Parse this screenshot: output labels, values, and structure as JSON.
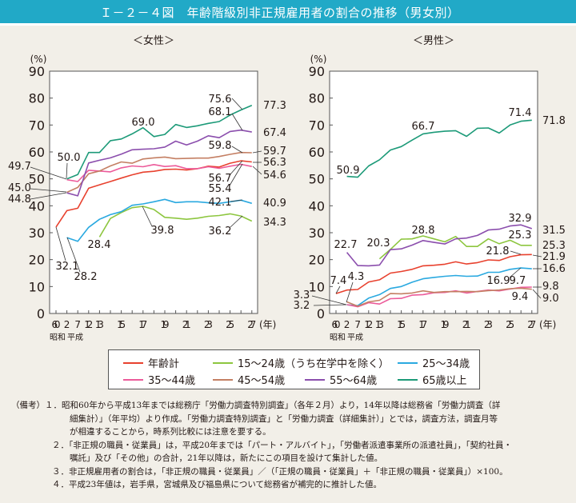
{
  "title": "Ｉ－２－４図　年齢階級別非正規雇用者の割合の推移（男女別）",
  "legend": [
    {
      "label": "年齢計",
      "color": "#e8412e"
    },
    {
      "label": "15～24歳（うち在学中を除く）",
      "color": "#8dc63f"
    },
    {
      "label": "25～34歳",
      "color": "#2aa9e0"
    },
    {
      "label": "35～44歳",
      "color": "#ec5b9a"
    },
    {
      "label": "45～54歳",
      "color": "#c47f63"
    },
    {
      "label": "55～64歳",
      "color": "#8b4ead"
    },
    {
      "label": "65歳以上",
      "color": "#1c9a78"
    }
  ],
  "notes": [
    "（備考）１．昭和60年から平成13年までは総務庁「労働力調査特別調査」（各年２月）より，14年以降は総務省「労働力調査（詳",
    "細集計）」（年平均）より作成。「労働力調査特別調査」と「労働力調査（詳細集計）」とでは，調査方法，調査月等",
    "が相違することから，時系列比較には注意を要する。",
    "２．「非正規の職員・従業員」は，平成20年までは「パート・アルバイト」，「労働者派遣事業所の派遣社員」，「契約社員・",
    "嘱託」及び「その他」の合計，21年以降は，新たにこの項目を設けて集計した値。",
    "３．非正規雇用者の割合は，「非正規の職員・従業員」／（「正規の職員・従業員」＋「非正規の職員・従業員」）×100。",
    "４．平成23年値は，岩手県，宮城県及び福島県について総務省が補完的に推計した値。"
  ],
  "chart_data": [
    {
      "type": "line",
      "title": "＜女性＞",
      "ylabel": "(%)",
      "xlabel": "(年)",
      "era_labels": [
        "昭和",
        "平成"
      ],
      "ylim": [
        0,
        90
      ],
      "yticks": [
        0,
        10,
        20,
        30,
        40,
        50,
        60,
        70,
        80,
        90
      ],
      "categories": [
        "60",
        "2",
        "7",
        "12",
        "13",
        "14",
        "15",
        "16",
        "17",
        "18",
        "19",
        "20",
        "21",
        "22",
        "23",
        "24",
        "25",
        "26",
        "27"
      ],
      "x_tick_labels": [
        "60",
        "2",
        "7",
        "12",
        "13",
        "",
        "15",
        "",
        "17",
        "",
        "19",
        "",
        "21",
        "",
        "23",
        "",
        "25",
        "",
        "27"
      ],
      "series": [
        {
          "name": "年齢計",
          "values": [
            32.1,
            38.2,
            39.1,
            46.5,
            47.8,
            49.0,
            50.3,
            51.5,
            52.5,
            52.8,
            53.5,
            53.6,
            53.3,
            53.8,
            54.7,
            54.4,
            55.8,
            56.7,
            56.3
          ]
        },
        {
          "name": "15～24歳（うち在学中を除く）",
          "values": [
            null,
            null,
            null,
            null,
            28.4,
            35.3,
            37.5,
            39.3,
            39.8,
            38.6,
            35.7,
            35.4,
            35.0,
            35.4,
            36.1,
            36.4,
            37.0,
            36.2,
            34.3
          ]
        },
        {
          "name": "25～34歳",
          "values": [
            null,
            28.2,
            26.8,
            32.0,
            35.0,
            36.7,
            37.8,
            40.2,
            40.7,
            41.5,
            42.4,
            41.2,
            41.5,
            41.5,
            41.1,
            40.9,
            41.5,
            42.1,
            40.9
          ]
        },
        {
          "name": "35～44歳",
          "values": [
            null,
            49.7,
            49.0,
            53.2,
            52.9,
            52.6,
            54.1,
            54.8,
            54.5,
            55.3,
            54.6,
            54.9,
            53.8,
            53.8,
            54.5,
            53.9,
            54.7,
            55.4,
            54.6
          ]
        },
        {
          "name": "45～54歳",
          "values": [
            null,
            45.0,
            46.8,
            51.9,
            52.9,
            54.8,
            56.3,
            55.8,
            57.4,
            57.8,
            58.1,
            57.5,
            57.6,
            57.7,
            57.7,
            58.3,
            59.1,
            59.8,
            59.7
          ]
        },
        {
          "name": "55～64歳",
          "values": [
            null,
            44.8,
            43.7,
            55.9,
            56.9,
            57.8,
            59.2,
            60.8,
            61.0,
            61.2,
            61.8,
            64.0,
            62.6,
            64.0,
            66.0,
            65.3,
            67.6,
            68.1,
            67.4
          ]
        },
        {
          "name": "65歳以上",
          "values": [
            null,
            50.0,
            51.6,
            59.8,
            59.8,
            64.2,
            64.8,
            66.7,
            69.0,
            65.7,
            66.5,
            70.2,
            69.1,
            69.7,
            70.6,
            71.3,
            73.7,
            75.6,
            77.3
          ]
        }
      ],
      "annotations": [
        "69.0",
        "50.0",
        "49.7",
        "45.0",
        "44.8",
        "32.1",
        "28.2",
        "28.4",
        "39.8",
        "36.2",
        "42.1",
        "75.6",
        "68.1",
        "59.8",
        "56.7",
        "55.4",
        "77.3",
        "67.4",
        "59.7",
        "56.3",
        "54.6",
        "40.9",
        "34.3"
      ]
    },
    {
      "type": "line",
      "title": "＜男性＞",
      "ylabel": "(%)",
      "xlabel": "(年)",
      "era_labels": [
        "昭和",
        "平成"
      ],
      "ylim": [
        0,
        90
      ],
      "yticks": [
        0,
        10,
        20,
        30,
        40,
        50,
        60,
        70,
        80,
        90
      ],
      "categories": [
        "60",
        "2",
        "7",
        "12",
        "13",
        "14",
        "15",
        "16",
        "17",
        "18",
        "19",
        "20",
        "21",
        "22",
        "23",
        "24",
        "25",
        "26",
        "27"
      ],
      "x_tick_labels": [
        "60",
        "2",
        "7",
        "12",
        "13",
        "",
        "15",
        "",
        "17",
        "",
        "19",
        "",
        "21",
        "",
        "23",
        "",
        "25",
        "",
        "27"
      ],
      "series": [
        {
          "name": "年齢計",
          "values": [
            7.4,
            8.7,
            8.9,
            11.7,
            12.5,
            15.0,
            15.6,
            16.4,
            17.7,
            17.9,
            18.3,
            19.2,
            18.4,
            18.9,
            19.9,
            19.7,
            21.1,
            21.8,
            21.9
          ]
        },
        {
          "name": "15～24歳（うち在学中を除く）",
          "values": [
            null,
            null,
            null,
            null,
            20.3,
            23.8,
            27.6,
            27.7,
            28.8,
            27.7,
            26.6,
            28.6,
            24.9,
            24.9,
            27.7,
            25.9,
            27.2,
            25.3,
            25.3
          ]
        },
        {
          "name": "25～34歳",
          "values": [
            null,
            3.2,
            2.9,
            5.7,
            7.0,
            9.3,
            10.0,
            11.6,
            12.9,
            13.4,
            13.8,
            14.1,
            13.8,
            13.9,
            15.3,
            15.3,
            16.4,
            16.9,
            16.6
          ]
        },
        {
          "name": "35～44歳",
          "values": [
            null,
            3.3,
            2.5,
            4.0,
            3.5,
            5.5,
            5.6,
            6.8,
            7.0,
            7.7,
            7.8,
            8.4,
            7.6,
            8.2,
            8.7,
            8.4,
            9.1,
            9.7,
            9.8
          ]
        },
        {
          "name": "45～54歳",
          "values": [
            null,
            4.3,
            2.7,
            4.3,
            4.9,
            7.4,
            7.3,
            7.6,
            8.4,
            7.8,
            8.1,
            8.1,
            8.2,
            8.1,
            8.5,
            8.7,
            9.2,
            9.4,
            9.0
          ]
        },
        {
          "name": "55～64歳",
          "values": [
            null,
            22.7,
            17.8,
            17.7,
            18.0,
            23.7,
            24.0,
            25.4,
            27.1,
            26.4,
            25.8,
            27.7,
            28.0,
            29.0,
            31.0,
            31.3,
            32.5,
            32.9,
            31.5
          ]
        },
        {
          "name": "65歳以上",
          "values": [
            null,
            50.9,
            50.6,
            54.8,
            57.1,
            60.7,
            62.0,
            64.4,
            66.7,
            67.3,
            67.7,
            67.9,
            65.8,
            68.8,
            68.9,
            67.0,
            70.0,
            71.4,
            71.8
          ]
        }
      ],
      "annotations": [
        "50.9",
        "66.7",
        "71.4",
        "71.8",
        "32.9",
        "31.5",
        "25.3",
        "25.3",
        "28.8",
        "20.3",
        "22.7",
        "21.8",
        "21.9",
        "16.6",
        "16.9",
        "9.7",
        "9.8",
        "9.4",
        "9.0",
        "7.4",
        "4.3",
        "3.3",
        "3.2"
      ]
    }
  ]
}
